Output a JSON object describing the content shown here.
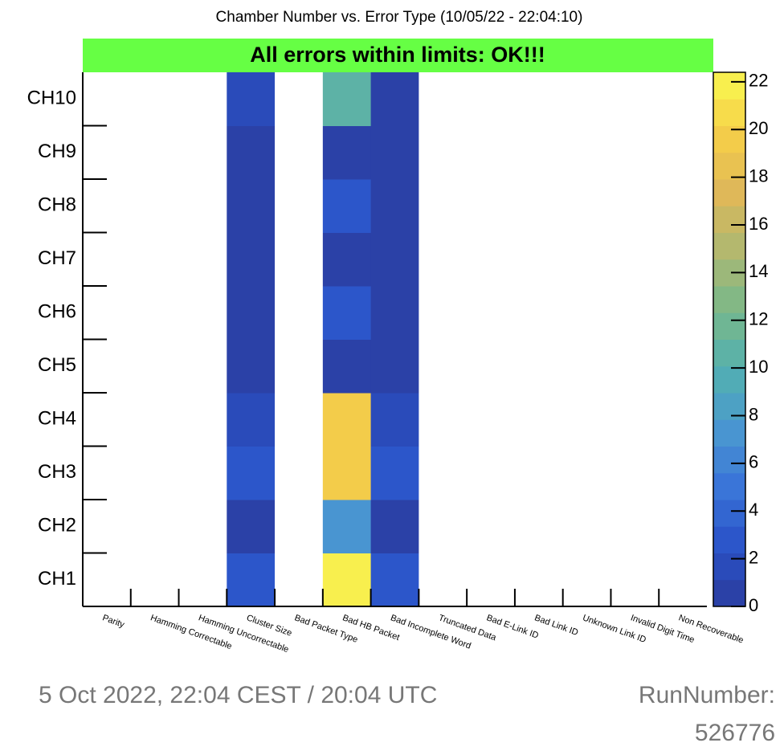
{
  "chart_data": {
    "type": "heatmap",
    "title": "Chamber Number vs. Error Type (10/05/22 - 22:04:10)",
    "banner": "All errors within limits: OK!!!",
    "banner_color": "#66ff44",
    "x_categories": [
      "Parity",
      "Hamming Correctable",
      "Hamming Uncorrectable",
      "Cluster Size",
      "Bad Packet Type",
      "Bad HB Packet",
      "Bad Incomplete Word",
      "Truncated Data",
      "Bad E-Link ID",
      "Bad Link ID",
      "Unknown Link ID",
      "Invalid Digit Time",
      "Non Recoverable"
    ],
    "y_categories": [
      "CH1",
      "CH2",
      "CH3",
      "CH4",
      "CH5",
      "CH6",
      "CH7",
      "CH8",
      "CH9",
      "CH10"
    ],
    "z": [
      [
        0,
        0,
        0,
        3,
        0,
        22,
        3,
        0,
        0,
        0,
        0,
        0,
        0
      ],
      [
        0,
        0,
        0,
        1,
        0,
        7,
        1,
        0,
        0,
        0,
        0,
        0,
        0
      ],
      [
        0,
        0,
        0,
        3,
        0,
        20,
        3,
        0,
        0,
        0,
        0,
        0,
        0
      ],
      [
        0,
        0,
        0,
        2,
        0,
        20,
        2,
        0,
        0,
        0,
        0,
        0,
        0
      ],
      [
        0,
        0,
        0,
        1,
        0,
        1,
        1,
        0,
        0,
        0,
        0,
        0,
        0
      ],
      [
        0,
        0,
        0,
        1,
        0,
        3,
        1,
        0,
        0,
        0,
        0,
        0,
        0
      ],
      [
        0,
        0,
        0,
        1,
        0,
        1,
        1,
        0,
        0,
        0,
        0,
        0,
        0
      ],
      [
        0,
        0,
        0,
        1,
        0,
        3,
        1,
        0,
        0,
        0,
        0,
        0,
        0
      ],
      [
        0,
        0,
        0,
        1,
        0,
        1,
        1,
        0,
        0,
        0,
        0,
        0,
        0
      ],
      [
        0,
        0,
        0,
        2,
        0,
        11,
        1,
        0,
        0,
        0,
        0,
        0,
        0
      ]
    ],
    "zlim": [
      0,
      22.4
    ],
    "zticks": [
      0,
      2,
      4,
      6,
      8,
      10,
      12,
      14,
      16,
      18,
      20,
      22
    ],
    "levels": 20,
    "colorscale": [
      "#2b3c9e",
      "#2a52c8",
      "#3a74d8",
      "#4a98d0",
      "#52b0b0",
      "#7ab88a",
      "#b0b870",
      "#e0b858",
      "#f6cf48",
      "#f8f850"
    ]
  },
  "footer": {
    "date": "5 Oct 2022, 22:04 CEST / 20:04 UTC",
    "run_label": "RunNumber:",
    "run_number": "526776"
  }
}
